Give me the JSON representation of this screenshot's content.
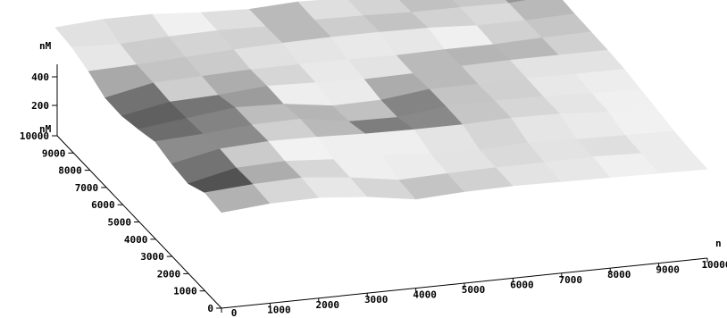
{
  "chart_data": {
    "type": "surface",
    "title": "",
    "units": {
      "z": "nM",
      "y": "nM",
      "x": "n"
    },
    "z_axis": {
      "ticks": [
        200,
        400
      ],
      "range": [
        0,
        450
      ]
    },
    "y_axis": {
      "ticks": [
        0,
        1000,
        2000,
        3000,
        4000,
        5000,
        6000,
        7000,
        8000,
        9000,
        10000
      ],
      "range": [
        0,
        10000
      ]
    },
    "x_axis": {
      "ticks": [
        0,
        1000,
        2000,
        3000,
        4000,
        5000,
        6000,
        7000,
        8000,
        9000,
        10000
      ],
      "range": [
        0,
        10000
      ]
    },
    "surface_heights_nM": [
      [
        260,
        300,
        300,
        260,
        240,
        270,
        250,
        220,
        220,
        210,
        260
      ],
      [
        230,
        210,
        240,
        250,
        240,
        260,
        250,
        230,
        230,
        220,
        260
      ],
      [
        150,
        170,
        200,
        230,
        250,
        260,
        260,
        250,
        220,
        220,
        240
      ],
      [
        40,
        160,
        180,
        200,
        200,
        200,
        190,
        200,
        200,
        220,
        230
      ],
      [
        30,
        140,
        160,
        210,
        190,
        170,
        180,
        210,
        220,
        220,
        220
      ],
      [
        80,
        150,
        220,
        200,
        120,
        130,
        200,
        200,
        210,
        200,
        200
      ],
      [
        140,
        170,
        220,
        230,
        140,
        130,
        200,
        210,
        200,
        180,
        160
      ],
      [
        80,
        200,
        230,
        220,
        200,
        190,
        190,
        210,
        200,
        160,
        120
      ],
      [
        50,
        180,
        200,
        160,
        150,
        110,
        100,
        120,
        100,
        90,
        80
      ],
      [
        150,
        190,
        210,
        150,
        60,
        80,
        90,
        90,
        100,
        80,
        50
      ],
      [
        120,
        170,
        180,
        130,
        40,
        70,
        80,
        70,
        60,
        50,
        40
      ]
    ],
    "grid": false,
    "legend": "none",
    "colors": {
      "surface_light": "#f2f2f2",
      "surface_dark": "#4a4a4a",
      "axis": "#000000"
    }
  }
}
